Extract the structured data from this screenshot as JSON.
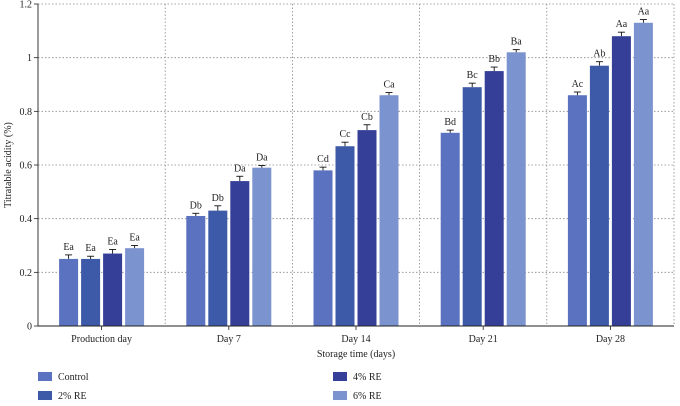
{
  "chart_data": {
    "type": "bar",
    "xlabel": "Storage time (days)",
    "ylabel": "Titratable acidity (%)",
    "ylim": [
      0,
      1.2
    ],
    "yticks": [
      0,
      0.2,
      0.4,
      0.6,
      0.8,
      1,
      1.2
    ],
    "ytick_labels": [
      "0",
      "0.2",
      "0.4",
      "0.6",
      "0.8",
      "1",
      "1.2"
    ],
    "grid": "dotted vertical and horizontal",
    "legend_placement": "bottom",
    "categories": [
      "Production day",
      "Day 7",
      "Day 14",
      "Day 21",
      "Day 28"
    ],
    "series": [
      {
        "name": "Control",
        "color": "#5a72bf",
        "values": [
          0.25,
          0.41,
          0.58,
          0.72,
          0.86
        ],
        "errors": [
          0.015,
          0.01,
          0.012,
          0.01,
          0.012
        ],
        "labels": [
          "Ea",
          "Db",
          "Cd",
          "Bd",
          "Ac"
        ]
      },
      {
        "name": "2% RE",
        "color": "#3d5aa8",
        "values": [
          0.25,
          0.43,
          0.67,
          0.89,
          0.97
        ],
        "errors": [
          0.01,
          0.018,
          0.015,
          0.015,
          0.015
        ],
        "labels": [
          "Ea",
          "Db",
          "Cc",
          "Bc",
          "Ab"
        ]
      },
      {
        "name": "4% RE",
        "color": "#353f98",
        "values": [
          0.27,
          0.54,
          0.73,
          0.95,
          1.08
        ],
        "errors": [
          0.015,
          0.018,
          0.02,
          0.015,
          0.015
        ],
        "labels": [
          "Ea",
          "Da",
          "Cb",
          "Bb",
          "Aa"
        ]
      },
      {
        "name": "6% RE",
        "color": "#7b93cf",
        "values": [
          0.29,
          0.59,
          0.86,
          1.02,
          1.13
        ],
        "errors": [
          0.01,
          0.008,
          0.01,
          0.01,
          0.012
        ],
        "labels": [
          "Ea",
          "Da",
          "Ca",
          "Ba",
          "Aa"
        ]
      }
    ]
  }
}
